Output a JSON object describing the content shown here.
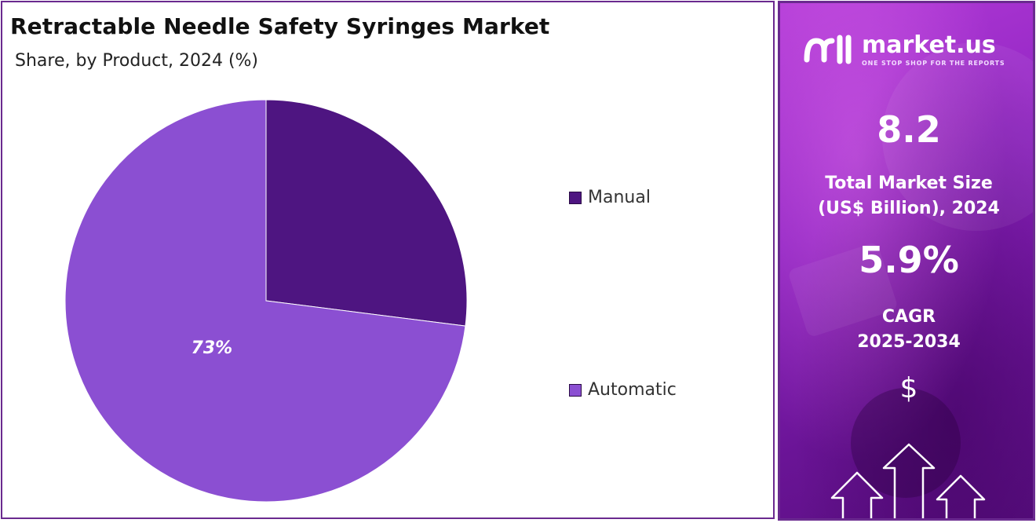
{
  "chart": {
    "title": "Retractable Needle Safety Syringes Market",
    "subtitle": "Share, by Product, 2024 (%)"
  },
  "chart_data": {
    "type": "pie",
    "title": "Retractable Needle Safety Syringes Market",
    "subtitle": "Share, by Product, 2024 (%)",
    "slices": [
      {
        "name": "Manual",
        "value": 27,
        "color": "#4e1581",
        "label": ""
      },
      {
        "name": "Automatic",
        "value": 73,
        "color": "#8b4fd2",
        "label": "73%"
      }
    ],
    "legend_placement": "right"
  },
  "side": {
    "logo_name": "market.us",
    "logo_tagline": "ONE STOP SHOP FOR THE REPORTS",
    "market_size_value": "8.2",
    "market_size_label_line1": "Total Market Size",
    "market_size_label_line2": "(US$ Billion), 2024",
    "cagr_value": "5.9%",
    "cagr_label_line1": "CAGR",
    "cagr_label_line2": "2025-2034",
    "currency_symbol": "$"
  },
  "colors": {
    "accent": "#6a2a8f",
    "manual": "#4e1581",
    "automatic": "#8b4fd2"
  },
  "icons": [
    "market-us-logo-icon",
    "upward-arrows-icon"
  ]
}
